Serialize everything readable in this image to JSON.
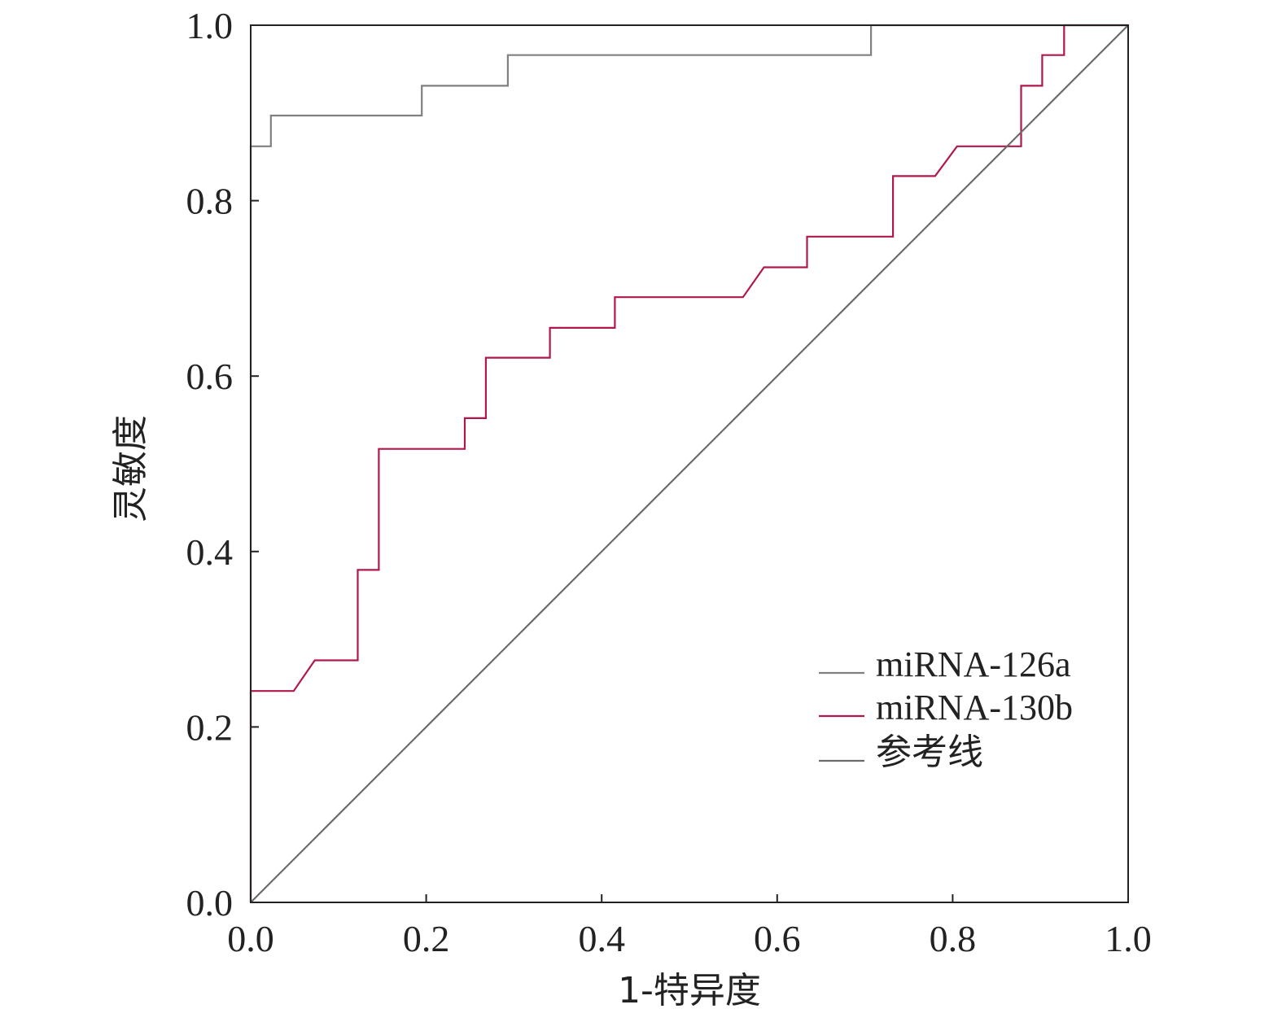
{
  "chart_data": {
    "type": "line",
    "xlabel": "1-特异度",
    "ylabel": "灵敏度",
    "xlim": [
      0,
      1
    ],
    "ylim": [
      0,
      1
    ],
    "xticks": [
      "0.0",
      "0.2",
      "0.4",
      "0.6",
      "0.8",
      "1.0"
    ],
    "yticks": [
      "0.0",
      "0.2",
      "0.4",
      "0.6",
      "0.8",
      "1.0"
    ],
    "grid": false,
    "legend_position": "bottom-right",
    "series": [
      {
        "name": "miRNA-126a",
        "color": "#808080",
        "x": [
          0.0,
          0.0,
          0.023,
          0.023,
          0.195,
          0.195,
          0.293,
          0.293,
          0.707,
          0.707,
          1.0
        ],
        "y": [
          0.0,
          0.862,
          0.862,
          0.897,
          0.897,
          0.931,
          0.931,
          0.966,
          0.966,
          1.0,
          1.0
        ]
      },
      {
        "name": "miRNA-130b",
        "color": "#b0174f",
        "x": [
          0.0,
          0.0,
          0.049,
          0.073,
          0.122,
          0.122,
          0.146,
          0.146,
          0.244,
          0.244,
          0.268,
          0.268,
          0.341,
          0.341,
          0.415,
          0.415,
          0.561,
          0.585,
          0.634,
          0.634,
          0.732,
          0.732,
          0.78,
          0.805,
          0.878,
          0.878,
          0.902,
          0.902,
          0.927,
          0.927,
          1.0
        ],
        "y": [
          0.0,
          0.241,
          0.241,
          0.276,
          0.276,
          0.379,
          0.379,
          0.517,
          0.517,
          0.552,
          0.552,
          0.621,
          0.621,
          0.655,
          0.655,
          0.69,
          0.69,
          0.724,
          0.724,
          0.759,
          0.759,
          0.828,
          0.828,
          0.862,
          0.862,
          0.931,
          0.931,
          0.966,
          0.966,
          1.0,
          1.0
        ]
      },
      {
        "name": "参考线",
        "color": "#6b6b6b",
        "x": [
          0.0,
          1.0
        ],
        "y": [
          0.0,
          1.0
        ]
      }
    ]
  }
}
